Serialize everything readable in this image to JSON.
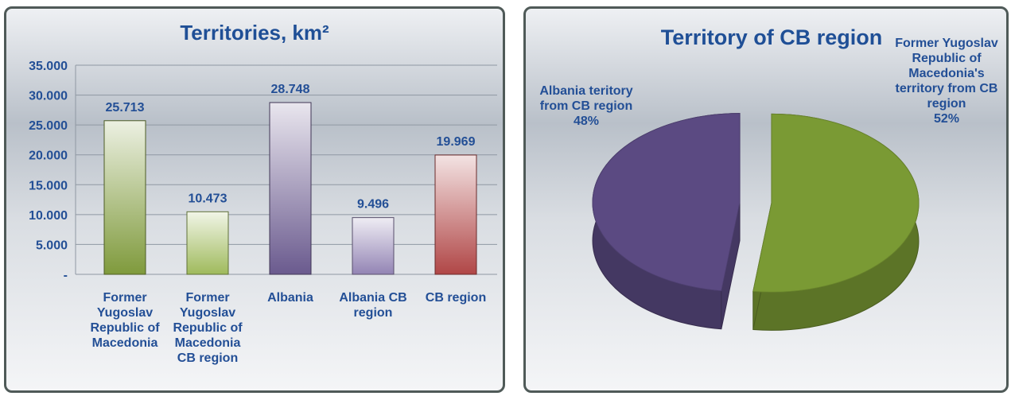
{
  "chart_data": [
    {
      "type": "bar",
      "title": "Territories, km²",
      "categories": [
        "Former Yugoslav Republic of Macedonia",
        "Former Yugoslav Republic of Macedonia CB region",
        "Albania",
        "Albania CB region",
        "CB region"
      ],
      "values": [
        25713,
        10473,
        28748,
        9496,
        19969
      ],
      "value_labels": [
        "25.713",
        "10.473",
        "28.748",
        "9.496",
        "19.969"
      ],
      "colors": [
        "#7f9a3c",
        "#9fba5c",
        "#6a5a8e",
        "#9384b4",
        "#b04646"
      ],
      "ylim": [
        0,
        35000
      ],
      "yticks": [
        {
          "value": 0,
          "label": "-"
        },
        {
          "value": 5000,
          "label": "5.000"
        },
        {
          "value": 10000,
          "label": "10.000"
        },
        {
          "value": 15000,
          "label": "15.000"
        },
        {
          "value": 20000,
          "label": "20.000"
        },
        {
          "value": 25000,
          "label": "25.000"
        },
        {
          "value": 30000,
          "label": "30.000"
        },
        {
          "value": 35000,
          "label": "35.000"
        }
      ],
      "grid": true
    },
    {
      "type": "pie",
      "title": "Territory of CB region",
      "categories": [
        "Former Yugoslav Republic of Macedonia's territory from CB region",
        "Albania teritory from CB region"
      ],
      "values": [
        52,
        48
      ],
      "value_labels": [
        "52%",
        "48%"
      ],
      "colors": [
        "#7a9a34",
        "#5b4a82"
      ]
    }
  ]
}
